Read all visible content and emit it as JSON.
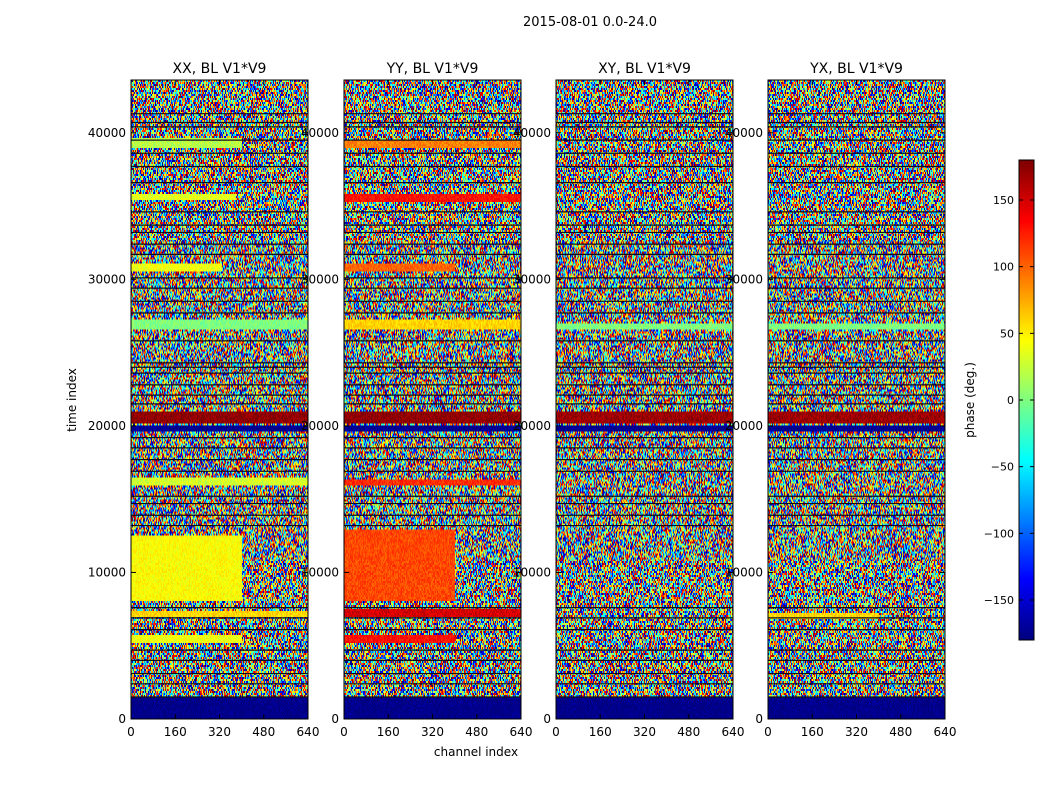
{
  "chart_data": {
    "type": "heatmap",
    "suptitle": "2015-08-01 0.0-24.0",
    "xlabel": "channel index",
    "ylabel": "time index",
    "xlim": [
      0,
      640
    ],
    "ylim": [
      0,
      43600
    ],
    "xticks": [
      0,
      160,
      320,
      480,
      640
    ],
    "yticks": [
      0,
      10000,
      20000,
      30000,
      40000
    ],
    "grid": false,
    "colormap": "jet",
    "colorbar": {
      "label": "phase (deg.)",
      "range": [
        -180,
        180
      ],
      "ticks": [
        -150,
        -100,
        -50,
        0,
        50,
        100,
        150
      ]
    },
    "panels": [
      {
        "title": "XX, BL V1*V9",
        "bands": [
          {
            "y": [
              39000,
              39600
            ],
            "x": [
              0,
              400
            ],
            "value": 20
          },
          {
            "y": [
              35400,
              35900
            ],
            "x": [
              0,
              380
            ],
            "value": 35
          },
          {
            "y": [
              30500,
              31000
            ],
            "x": [
              0,
              330
            ],
            "value": 40
          },
          {
            "y": [
              26600,
              27200
            ],
            "x": [
              0,
              640
            ],
            "value": 0
          },
          {
            "y": [
              20100,
              21000
            ],
            "x": [
              0,
              640
            ],
            "value": 175
          },
          {
            "y": [
              19600,
              20000
            ],
            "x": [
              0,
              640
            ],
            "value": -175
          },
          {
            "y": [
              16000,
              16500
            ],
            "x": [
              0,
              640
            ],
            "value": 30
          },
          {
            "y": [
              8000,
              12500
            ],
            "x": [
              0,
              400
            ],
            "value": 45
          },
          {
            "y": [
              7000,
              7400
            ],
            "x": [
              0,
              640
            ],
            "value": 60
          },
          {
            "y": [
              5200,
              5700
            ],
            "x": [
              0,
              400
            ],
            "value": 40
          },
          {
            "y": [
              0,
              1500
            ],
            "x": [
              0,
              640
            ],
            "value": -178
          }
        ]
      },
      {
        "title": "YY, BL V1*V9",
        "bands": [
          {
            "y": [
              39000,
              39500
            ],
            "x": [
              0,
              640
            ],
            "value": 90
          },
          {
            "y": [
              35300,
              35900
            ],
            "x": [
              0,
              640
            ],
            "value": 130
          },
          {
            "y": [
              30500,
              31000
            ],
            "x": [
              0,
              400
            ],
            "value": 100
          },
          {
            "y": [
              26600,
              27200
            ],
            "x": [
              0,
              640
            ],
            "value": 60
          },
          {
            "y": [
              20100,
              21000
            ],
            "x": [
              0,
              640
            ],
            "value": 175
          },
          {
            "y": [
              19600,
              20000
            ],
            "x": [
              0,
              640
            ],
            "value": -175
          },
          {
            "y": [
              15900,
              16400
            ],
            "x": [
              0,
              640
            ],
            "value": 120
          },
          {
            "y": [
              8000,
              13000
            ],
            "x": [
              0,
              400
            ],
            "value": 110
          },
          {
            "y": [
              7000,
              7500
            ],
            "x": [
              0,
              640
            ],
            "value": 150
          },
          {
            "y": [
              5200,
              5700
            ],
            "x": [
              0,
              400
            ],
            "value": 130
          },
          {
            "y": [
              0,
              1500
            ],
            "x": [
              0,
              640
            ],
            "value": -178
          }
        ]
      },
      {
        "title": "XY, BL V1*V9",
        "bands": [
          {
            "y": [
              20100,
              21000
            ],
            "x": [
              0,
              640
            ],
            "value": 170
          },
          {
            "y": [
              19600,
              20000
            ],
            "x": [
              0,
              640
            ],
            "value": -175
          },
          {
            "y": [
              26600,
              27000
            ],
            "x": [
              0,
              640
            ],
            "value": 0
          },
          {
            "y": [
              0,
              1500
            ],
            "x": [
              0,
              640
            ],
            "value": -178
          }
        ]
      },
      {
        "title": "YX, BL V1*V9",
        "bands": [
          {
            "y": [
              20100,
              21000
            ],
            "x": [
              0,
              640
            ],
            "value": 170
          },
          {
            "y": [
              19600,
              20000
            ],
            "x": [
              0,
              640
            ],
            "value": -175
          },
          {
            "y": [
              26600,
              27000
            ],
            "x": [
              0,
              640
            ],
            "value": 0
          },
          {
            "y": [
              6800,
              7200
            ],
            "x": [
              0,
              400
            ],
            "value": 60
          },
          {
            "y": [
              0,
              1500
            ],
            "x": [
              0,
              640
            ],
            "value": -178
          }
        ]
      }
    ],
    "flagged_rows": [
      1500,
      2400,
      3100,
      4000,
      4700,
      6100,
      6900,
      7600,
      13200,
      13900,
      14700,
      15200,
      16900,
      17700,
      18500,
      19200,
      21500,
      22100,
      22800,
      23600,
      24000,
      24300,
      25800,
      27700,
      28500,
      29400,
      30100,
      31700,
      32400,
      33200,
      33700,
      34600,
      36600,
      37700,
      38600,
      39500,
      40400,
      40700,
      41300
    ]
  }
}
